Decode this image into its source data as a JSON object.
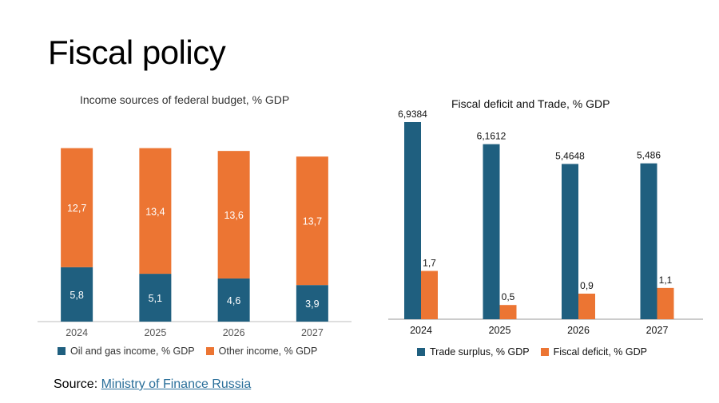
{
  "page": {
    "title": "Fiscal policy",
    "source_label": "Source:",
    "source_link": "Ministry of Finance Russia"
  },
  "colors": {
    "blue": "#1f5f7f",
    "orange": "#ec7533"
  },
  "chart_data": [
    {
      "type": "bar",
      "stacked": true,
      "title": "Income sources of federal budget, % GDP",
      "categories": [
        "2024",
        "2025",
        "2026",
        "2027"
      ],
      "series": [
        {
          "name": "Oil and gas income, % GDP",
          "values": [
            5.8,
            5.1,
            4.6,
            3.9
          ],
          "labels": [
            "5,8",
            "5,1",
            "4,6",
            "3,9"
          ],
          "color": "#1f5f7f"
        },
        {
          "name": "Other income, % GDP",
          "values": [
            12.7,
            13.4,
            13.6,
            13.7
          ],
          "labels": [
            "12,7",
            "13,4",
            "13,6",
            "13,7"
          ],
          "color": "#ec7533"
        }
      ],
      "ylim": [
        0,
        20
      ],
      "legend": "bottom"
    },
    {
      "type": "bar",
      "stacked": false,
      "title": "Fiscal deficit and Trade, % GDP",
      "categories": [
        "2024",
        "2025",
        "2026",
        "2027"
      ],
      "series": [
        {
          "name": "Trade surplus, % GDP",
          "values": [
            6.9384,
            6.1612,
            5.4648,
            5.486
          ],
          "labels": [
            "6,9384",
            "6,1612",
            "5,4648",
            "5,486"
          ],
          "color": "#1f5f7f"
        },
        {
          "name": "Fiscal deficit, % GDP",
          "values": [
            1.7,
            0.5,
            0.9,
            1.1
          ],
          "labels": [
            "1,7",
            "0,5",
            "0,9",
            "1,1"
          ],
          "color": "#ec7533"
        }
      ],
      "ylim": [
        0,
        7.5
      ],
      "legend": "bottom"
    }
  ]
}
